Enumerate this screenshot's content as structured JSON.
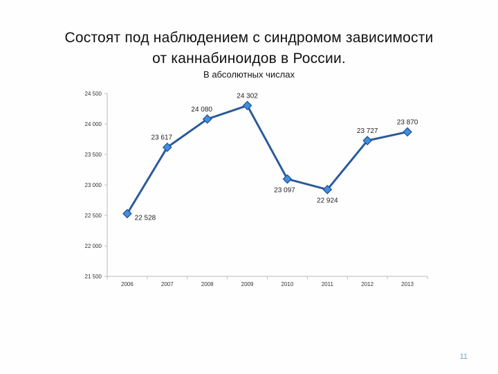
{
  "slide": {
    "title_line1": "Состоят под наблюдением с синдромом зависимости",
    "title_line2": "от каннабиноидов в России.",
    "subtitle": "В абсолютных числах",
    "page_number": "11"
  },
  "chart_data": {
    "type": "line",
    "title": "",
    "xlabel": "",
    "ylabel": "",
    "categories": [
      "2006",
      "2007",
      "2008",
      "2009",
      "2010",
      "2011",
      "2012",
      "2013"
    ],
    "series": [
      {
        "values": [
          22528,
          23617,
          24080,
          24302,
          23097,
          22924,
          23727,
          23870
        ],
        "data_labels": [
          "22 528",
          "23 617",
          "24 080",
          "24 302",
          "23 097",
          "22 924",
          "23 727",
          "23 870"
        ]
      }
    ],
    "ylim": [
      21500,
      24500
    ],
    "yticks": [
      21500,
      22000,
      22500,
      23000,
      23500,
      24000,
      24500
    ],
    "ytick_labels": [
      "21 500",
      "22 000",
      "22 500",
      "23 000",
      "23 500",
      "24 000",
      "24 500"
    ],
    "grid": false,
    "legend": "none",
    "colors": {
      "line": "#2a5a9a",
      "marker_fill": "#3f8fe0",
      "marker_stroke": "#1f4f8f",
      "axis": "#bbbbbb",
      "text": "#333333"
    }
  }
}
